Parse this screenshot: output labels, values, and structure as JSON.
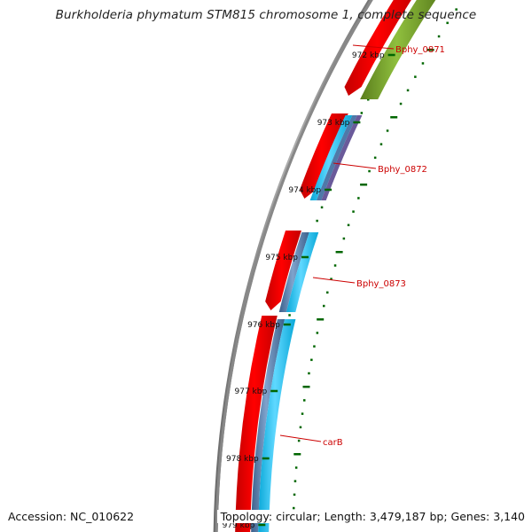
{
  "title": "Burkholderia phymatum STM815 chromosome 1, complete sequence",
  "accession": "Accession: NC_010622",
  "topology": "Topology: circular; Length: 3,479,187 bp; Genes: 3,140",
  "ticks": [
    {
      "label": "972 kbp"
    },
    {
      "label": "973 kbp"
    },
    {
      "label": "974 kbp"
    },
    {
      "label": "975 kbp"
    },
    {
      "label": "976 kbp"
    },
    {
      "label": "977 kbp"
    },
    {
      "label": "978 kbp"
    },
    {
      "label": "979 kbp"
    }
  ],
  "genes": [
    {
      "name": "Bphy_0871"
    },
    {
      "name": "Bphy_0872"
    },
    {
      "name": "Bphy_0873"
    },
    {
      "name": "carB"
    }
  ],
  "colors": {
    "backbone": "#888888",
    "cds_forward": "#ff0000",
    "gene_label": "#cc0000",
    "tick_mark": "#006600",
    "track_olive": "#6e9a2a",
    "track_cyan": "#18c0f0",
    "track_steel": "#4f79a8",
    "track_violet": "#6a5a9a"
  }
}
